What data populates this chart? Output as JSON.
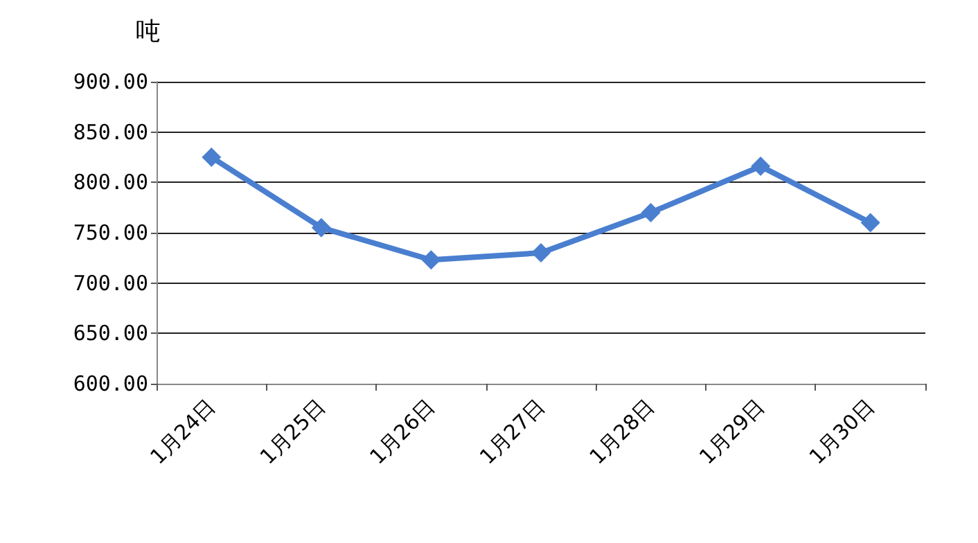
{
  "chart_data": {
    "type": "line",
    "ylabel": "吨",
    "categories": [
      "1月24日",
      "1月25日",
      "1月26日",
      "1月27日",
      "1月28日",
      "1月29日",
      "1月30日"
    ],
    "series": [
      {
        "color": "#4a7fd0",
        "values": [
          825,
          755,
          723,
          730,
          770,
          816,
          760
        ]
      }
    ],
    "ylim": [
      600,
      900
    ],
    "yticks": [
      {
        "value": 600,
        "label": "600.00"
      },
      {
        "value": 650,
        "label": "650.00"
      },
      {
        "value": 700,
        "label": "700.00"
      },
      {
        "value": 750,
        "label": "750.00"
      },
      {
        "value": 800,
        "label": "800.00"
      },
      {
        "value": 850,
        "label": "850.00"
      },
      {
        "value": 900,
        "label": "900.00"
      }
    ],
    "grid": "y",
    "marker": "diamond"
  }
}
